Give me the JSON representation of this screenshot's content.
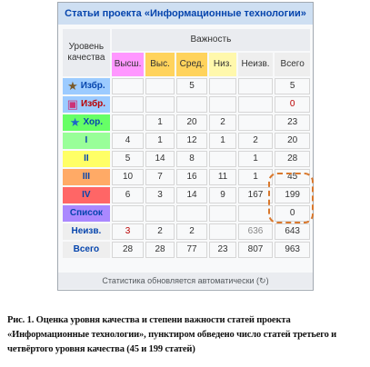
{
  "title": "Статьи проекта «Информационные технологии»",
  "corner_label": "Уровень качества",
  "importance_header": "Важность",
  "columns": [
    "Высш.",
    "Выс.",
    "Сред.",
    "Низ.",
    "Неизв.",
    "Всего"
  ],
  "column_colors": [
    "#ff97ff",
    "#ffd35c",
    "#ffd35c",
    "#fff8ac",
    "#eeeeee",
    "#eeeeee"
  ],
  "rows": [
    {
      "label": "Избр.",
      "icon": "star-icon",
      "bg": "#9ccbff",
      "cells": [
        "",
        "",
        "5",
        "",
        "",
        "5"
      ]
    },
    {
      "label": "Избр.",
      "icon": "featured-list-icon",
      "bg": "#9ccbff",
      "cells": [
        "",
        "",
        "",
        "",
        "",
        "0"
      ]
    },
    {
      "label": "Хор.",
      "icon": "good-star-icon",
      "bg": "#66ff66",
      "cells": [
        "",
        "1",
        "20",
        "2",
        "",
        "23"
      ]
    },
    {
      "label": "I",
      "icon": "",
      "bg": "#99ff99",
      "cells": [
        "4",
        "1",
        "12",
        "1",
        "2",
        "20"
      ]
    },
    {
      "label": "II",
      "icon": "",
      "bg": "#ffff66",
      "cells": [
        "5",
        "14",
        "8",
        "",
        "1",
        "28"
      ]
    },
    {
      "label": "III",
      "icon": "",
      "bg": "#ffaa66",
      "cells": [
        "10",
        "7",
        "16",
        "11",
        "1",
        "45"
      ]
    },
    {
      "label": "IV",
      "icon": "",
      "bg": "#ff6666",
      "cells": [
        "6",
        "3",
        "14",
        "9",
        "167",
        "199"
      ]
    },
    {
      "label": "Список",
      "icon": "",
      "bg": "#aa88ff",
      "cells": [
        "",
        "",
        "",
        "",
        "",
        "0"
      ]
    },
    {
      "label": "Неизв.",
      "icon": "",
      "bg": "#eeeeee",
      "cells": [
        "3",
        "2",
        "2",
        "",
        "636",
        "643"
      ]
    },
    {
      "label": "Всего",
      "icon": "",
      "bg": "#eeeeee",
      "cells": [
        "28",
        "28",
        "77",
        "23",
        "807",
        "963"
      ]
    }
  ],
  "footer": "Статистика обновляется автоматически (↻)",
  "caption": "Рис. 1. Оценка уровня качества и степени важности статей проекта «Информационные технологии», пунктиром обведено число статей третьего и четвёртого уровня качества (45 и 199 статей)"
}
